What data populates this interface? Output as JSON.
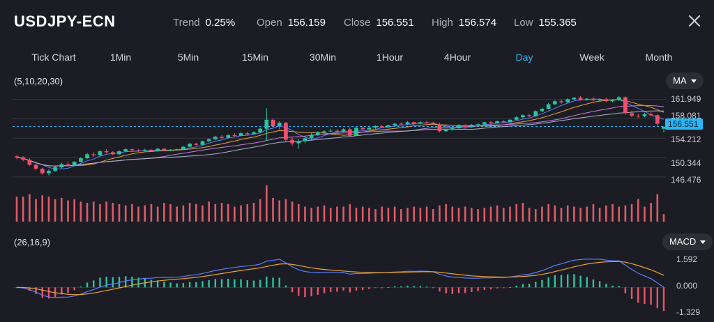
{
  "header": {
    "symbol": "USDJPY-ECN",
    "stats": [
      {
        "label": "Trend",
        "value": "0.25%"
      },
      {
        "label": "Open",
        "value": "156.159"
      },
      {
        "label": "Close",
        "value": "156.551"
      },
      {
        "label": "High",
        "value": "156.574"
      },
      {
        "label": "Low",
        "value": "155.365"
      }
    ]
  },
  "tabs": [
    {
      "label": "Tick Chart",
      "active": false
    },
    {
      "label": "1Min",
      "active": false
    },
    {
      "label": "5Min",
      "active": false
    },
    {
      "label": "15Min",
      "active": false
    },
    {
      "label": "30Min",
      "active": false
    },
    {
      "label": "1Hour",
      "active": false
    },
    {
      "label": "4Hour",
      "active": false
    },
    {
      "label": "Day",
      "active": true
    },
    {
      "label": "Week",
      "active": false
    },
    {
      "label": "Month",
      "active": false
    }
  ],
  "price_panel": {
    "params": "(5,10,20,30)",
    "indicator": "MA",
    "y_ticks": [
      "161.949",
      "158.081",
      "154.212",
      "150.344",
      "146.476"
    ],
    "current_price": "156.551"
  },
  "macd_panel": {
    "params": "(26,16,9)",
    "indicator": "MACD",
    "y_ticks": [
      "1.592",
      "0.000",
      "-1.329"
    ]
  },
  "colors": {
    "up": "#26c6a0",
    "down": "#f0506e",
    "volume": "#e05a69",
    "accent": "#29b6f6",
    "ma5": "#5b7cfa",
    "ma10": "#e9a23b",
    "ma20": "#c77de0",
    "ma30": "#aab4c8"
  },
  "chart_data": {
    "type": "candlestick",
    "title": "USDJPY-ECN",
    "ylim": [
      144.5,
      164.0
    ],
    "ohlc": [
      [
        150.6,
        150.8,
        150.0,
        150.4
      ],
      [
        150.4,
        150.6,
        149.6,
        149.9
      ],
      [
        149.9,
        150.2,
        148.7,
        148.9
      ],
      [
        148.9,
        149.3,
        147.8,
        148.1
      ],
      [
        148.1,
        148.3,
        146.9,
        147.2
      ],
      [
        147.2,
        148.0,
        146.8,
        147.7
      ],
      [
        147.7,
        148.6,
        147.5,
        148.4
      ],
      [
        148.4,
        149.3,
        148.1,
        149.0
      ],
      [
        149.0,
        149.6,
        148.6,
        148.7
      ],
      [
        148.7,
        149.6,
        148.6,
        149.5
      ],
      [
        149.5,
        150.4,
        149.4,
        150.2
      ],
      [
        150.2,
        151.3,
        150.0,
        151.0
      ],
      [
        151.0,
        151.4,
        150.5,
        150.8
      ],
      [
        150.8,
        151.8,
        150.7,
        151.6
      ],
      [
        151.6,
        152.0,
        151.2,
        151.4
      ],
      [
        151.4,
        151.6,
        150.8,
        151.0
      ],
      [
        151.0,
        151.8,
        150.9,
        151.6
      ],
      [
        151.6,
        152.2,
        151.4,
        152.0
      ],
      [
        152.0,
        152.2,
        151.6,
        151.8
      ],
      [
        151.8,
        152.0,
        151.5,
        151.7
      ],
      [
        151.7,
        152.1,
        151.6,
        151.9
      ],
      [
        151.9,
        152.0,
        151.5,
        151.6
      ],
      [
        151.6,
        152.3,
        151.5,
        152.1
      ],
      [
        152.1,
        152.2,
        151.7,
        151.8
      ],
      [
        151.8,
        152.0,
        151.6,
        151.9
      ],
      [
        151.9,
        152.1,
        151.7,
        152.0
      ],
      [
        152.0,
        152.6,
        151.9,
        152.5
      ],
      [
        152.5,
        153.3,
        152.4,
        153.1
      ],
      [
        153.1,
        153.3,
        152.7,
        152.9
      ],
      [
        152.9,
        153.7,
        152.8,
        153.6
      ],
      [
        153.6,
        154.2,
        153.5,
        154.0
      ],
      [
        154.0,
        154.7,
        153.8,
        154.5
      ],
      [
        154.5,
        154.8,
        154.1,
        154.3
      ],
      [
        154.3,
        155.0,
        154.2,
        154.8
      ],
      [
        154.8,
        155.2,
        154.5,
        154.7
      ],
      [
        154.7,
        155.4,
        154.6,
        155.2
      ],
      [
        155.2,
        155.5,
        154.8,
        155.0
      ],
      [
        155.0,
        155.6,
        154.9,
        155.4
      ],
      [
        155.4,
        156.3,
        155.2,
        156.1
      ],
      [
        156.1,
        160.2,
        153.7,
        157.9
      ],
      [
        157.9,
        158.2,
        156.3,
        156.6
      ],
      [
        156.6,
        157.6,
        156.0,
        157.3
      ],
      [
        157.3,
        157.5,
        153.5,
        153.9
      ],
      [
        153.9,
        154.5,
        152.7,
        153.2
      ],
      [
        153.2,
        154.0,
        152.1,
        153.6
      ],
      [
        153.6,
        154.5,
        153.2,
        154.2
      ],
      [
        154.2,
        155.3,
        154.0,
        154.9
      ],
      [
        154.9,
        155.6,
        154.7,
        155.4
      ],
      [
        155.4,
        155.8,
        155.0,
        155.6
      ],
      [
        155.6,
        156.1,
        155.4,
        155.7
      ],
      [
        155.7,
        156.0,
        155.2,
        155.5
      ],
      [
        155.5,
        156.2,
        155.4,
        156.0
      ],
      [
        156.0,
        156.4,
        154.4,
        154.7
      ],
      [
        154.7,
        156.5,
        154.6,
        156.3
      ],
      [
        156.3,
        156.6,
        155.8,
        156.0
      ],
      [
        156.0,
        156.5,
        155.9,
        156.3
      ],
      [
        156.3,
        156.8,
        156.1,
        156.6
      ],
      [
        156.6,
        156.9,
        156.2,
        156.4
      ],
      [
        156.4,
        156.9,
        156.3,
        156.8
      ],
      [
        156.8,
        157.3,
        156.6,
        157.1
      ],
      [
        157.1,
        157.4,
        156.8,
        157.0
      ],
      [
        157.0,
        157.6,
        156.9,
        157.4
      ],
      [
        157.4,
        157.5,
        156.9,
        157.1
      ],
      [
        157.1,
        157.6,
        157.0,
        157.4
      ],
      [
        157.4,
        157.7,
        157.1,
        157.3
      ],
      [
        157.3,
        157.5,
        156.8,
        157.0
      ],
      [
        157.0,
        157.3,
        155.4,
        155.6
      ],
      [
        155.6,
        156.1,
        155.4,
        155.9
      ],
      [
        155.9,
        156.4,
        155.7,
        156.2
      ],
      [
        156.2,
        157.0,
        156.0,
        156.8
      ],
      [
        156.8,
        157.0,
        156.3,
        156.5
      ],
      [
        156.5,
        157.0,
        156.3,
        156.9
      ],
      [
        156.9,
        157.2,
        156.7,
        157.0
      ],
      [
        157.0,
        157.5,
        156.9,
        157.4
      ],
      [
        157.4,
        157.6,
        157.0,
        157.2
      ],
      [
        157.2,
        157.7,
        157.1,
        157.6
      ],
      [
        157.6,
        157.8,
        157.2,
        157.4
      ],
      [
        157.4,
        158.0,
        157.3,
        157.9
      ],
      [
        157.9,
        158.6,
        157.8,
        158.4
      ],
      [
        158.4,
        159.0,
        158.2,
        158.8
      ],
      [
        158.8,
        159.1,
        158.4,
        158.6
      ],
      [
        158.6,
        159.8,
        158.5,
        159.6
      ],
      [
        159.6,
        160.3,
        159.4,
        160.1
      ],
      [
        160.1,
        161.2,
        160.0,
        161.0
      ],
      [
        161.0,
        161.8,
        160.8,
        161.6
      ],
      [
        161.6,
        162.0,
        161.1,
        161.4
      ],
      [
        161.4,
        162.2,
        161.3,
        162.0
      ],
      [
        162.0,
        162.4,
        161.8,
        162.3
      ],
      [
        162.3,
        162.6,
        161.7,
        161.9
      ],
      [
        161.9,
        162.3,
        161.7,
        162.1
      ],
      [
        162.1,
        162.4,
        161.6,
        161.8
      ],
      [
        161.8,
        162.2,
        161.5,
        162.0
      ],
      [
        162.0,
        162.3,
        161.4,
        161.6
      ],
      [
        161.6,
        162.0,
        161.4,
        161.8
      ],
      [
        161.8,
        162.6,
        161.7,
        162.4
      ],
      [
        162.4,
        162.6,
        158.9,
        159.2
      ],
      [
        159.2,
        159.7,
        158.4,
        158.7
      ],
      [
        158.7,
        159.1,
        158.2,
        158.6
      ],
      [
        158.6,
        159.3,
        158.4,
        159.0
      ],
      [
        159.0,
        159.4,
        158.6,
        158.8
      ],
      [
        158.8,
        159.0,
        156.6,
        157.1
      ],
      [
        156.1,
        156.6,
        155.4,
        156.5
      ]
    ],
    "volume": [
      1.0,
      1.0,
      1.1,
      0.9,
      1.05,
      1.0,
      0.9,
      0.95,
      0.85,
      0.9,
      0.8,
      0.75,
      0.8,
      0.7,
      0.8,
      0.75,
      0.7,
      0.65,
      0.7,
      0.6,
      0.65,
      0.7,
      0.6,
      0.75,
      0.7,
      0.6,
      0.65,
      0.75,
      0.7,
      0.65,
      0.8,
      0.7,
      0.75,
      0.7,
      0.6,
      0.65,
      0.7,
      0.75,
      0.9,
      1.45,
      0.95,
      0.85,
      0.9,
      0.8,
      0.7,
      0.6,
      0.55,
      0.6,
      0.65,
      0.55,
      0.6,
      0.6,
      0.7,
      0.55,
      0.6,
      0.55,
      0.5,
      0.6,
      0.55,
      0.6,
      0.5,
      0.55,
      0.6,
      0.55,
      0.6,
      0.5,
      0.65,
      0.7,
      0.6,
      0.55,
      0.6,
      0.55,
      0.5,
      0.55,
      0.6,
      0.65,
      0.55,
      0.6,
      0.7,
      0.75,
      0.55,
      0.5,
      0.6,
      0.7,
      0.65,
      0.55,
      0.65,
      0.6,
      0.55,
      0.6,
      0.7,
      0.55,
      0.65,
      0.7,
      0.6,
      0.65,
      0.7,
      0.9,
      0.6,
      0.75,
      1.1,
      0.3
    ],
    "macd": {
      "ylim": [
        -1.5,
        1.9
      ],
      "ticks": [
        1.592,
        0.0,
        -1.329
      ]
    }
  }
}
